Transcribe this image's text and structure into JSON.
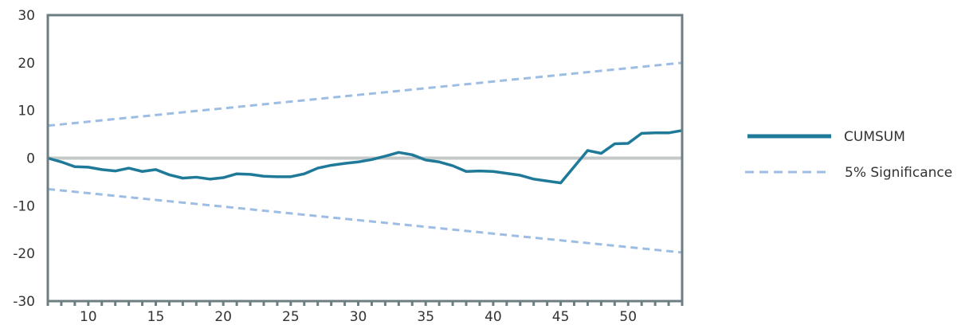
{
  "chart_data": {
    "type": "line",
    "title": "",
    "xlabel": "",
    "ylabel": "",
    "xlim": [
      7,
      54
    ],
    "ylim": [
      -30,
      30
    ],
    "y_ticks": [
      30,
      20,
      10,
      0,
      -10,
      -20,
      -30
    ],
    "x_ticks": [
      10,
      15,
      20,
      25,
      30,
      35,
      40,
      45,
      50
    ],
    "grid": false,
    "zero_line": true,
    "legend_position": "right",
    "colors": {
      "cumsum": "#1f7a99",
      "significance": "#9dbde2",
      "zero_line": "#c4c8c9",
      "frame": "#6d7e83"
    },
    "series": [
      {
        "name": "CUMSUM",
        "style": "solid",
        "x": [
          7,
          8,
          9,
          10,
          11,
          12,
          13,
          14,
          15,
          16,
          17,
          18,
          19,
          20,
          21,
          22,
          23,
          24,
          25,
          26,
          27,
          28,
          29,
          30,
          31,
          32,
          33,
          34,
          35,
          36,
          37,
          38,
          39,
          40,
          41,
          42,
          43,
          44,
          45,
          46,
          47,
          48,
          49,
          50,
          51,
          52,
          53,
          54
        ],
        "y": [
          0,
          -0.8,
          -1.8,
          -1.9,
          -2.4,
          -2.7,
          -2.1,
          -2.8,
          -2.4,
          -3.5,
          -4.2,
          -4.0,
          -4.4,
          -4.1,
          -3.3,
          -3.4,
          -3.8,
          -3.9,
          -3.9,
          -3.3,
          -2.1,
          -1.5,
          -1.1,
          -0.8,
          -0.3,
          0.4,
          1.2,
          0.7,
          -0.4,
          -0.8,
          -1.6,
          -2.8,
          -2.7,
          -2.8,
          -3.2,
          -3.6,
          -4.4,
          -4.8,
          -5.2,
          -1.8,
          1.6,
          1.0,
          3.0,
          3.1,
          5.2,
          5.3,
          5.3,
          5.8
        ]
      },
      {
        "name": "5% Significance",
        "style": "dashed",
        "upper": {
          "x": [
            7,
            54
          ],
          "y": [
            6.8,
            20
          ]
        },
        "lower": {
          "x": [
            7,
            54
          ],
          "y": [
            -6.5,
            -19.8
          ]
        }
      }
    ]
  }
}
